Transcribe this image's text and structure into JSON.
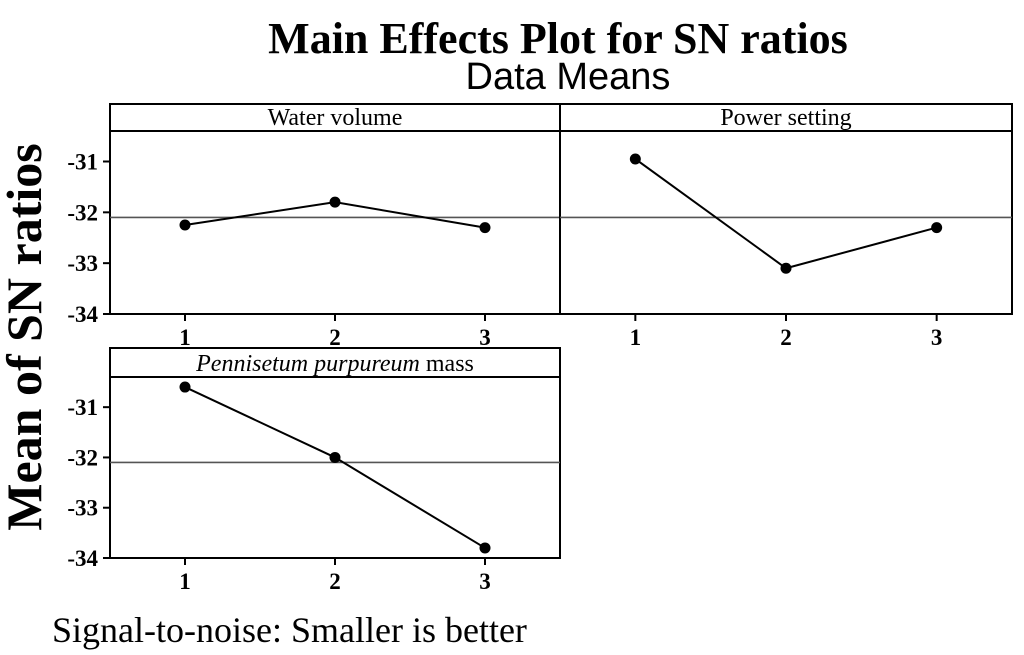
{
  "chart_data": {
    "type": "line",
    "title": "Main Effects Plot for SN ratios",
    "subtitle": "Data Means",
    "ylabel": "Mean of SN ratios",
    "footnote": "Signal-to-noise: Smaller is better",
    "ylim": [
      -34,
      -30.4
    ],
    "yticks": [
      -31,
      -32,
      -33,
      -34
    ],
    "overall_mean": -32.1,
    "categories": [
      "1",
      "2",
      "3"
    ],
    "panels": [
      {
        "title": "Water volume",
        "title_italic": "",
        "title_rest": "",
        "values": [
          -32.25,
          -31.8,
          -32.3
        ]
      },
      {
        "title": "Power setting",
        "title_italic": "",
        "title_rest": "",
        "values": [
          -30.95,
          -33.1,
          -32.3
        ]
      },
      {
        "title": "",
        "title_italic": "Pennisetum purpureum",
        "title_rest": " mass",
        "values": [
          -30.6,
          -32.0,
          -33.8
        ]
      }
    ]
  }
}
